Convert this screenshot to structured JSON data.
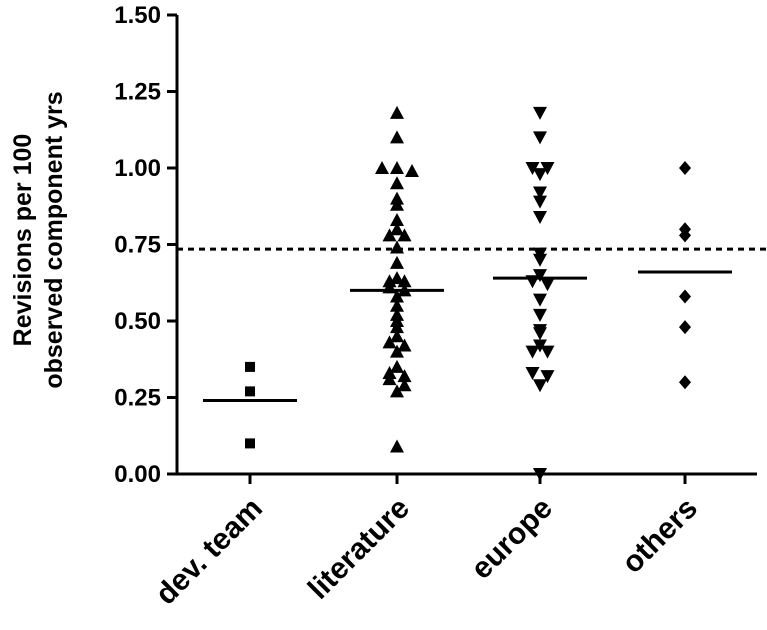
{
  "chart_data": {
    "type": "scatter",
    "title": "",
    "xlabel": "",
    "ylabel_lines": [
      "Revisions per 100",
      "observed component  yrs"
    ],
    "ylim": [
      0,
      1.5
    ],
    "yticks": [
      "0.00",
      "0.25",
      "0.50",
      "0.75",
      "1.00",
      "1.25",
      "1.50"
    ],
    "ytick_values": [
      0,
      0.25,
      0.5,
      0.75,
      1.0,
      1.25,
      1.5
    ],
    "reference_line": 0.735,
    "categories": [
      "dev. team",
      "literature",
      "europe",
      "others"
    ],
    "series": [
      {
        "category": "dev. team",
        "marker": "square",
        "mean": 0.24,
        "points": [
          0.35,
          0.27,
          0.1
        ]
      },
      {
        "category": "literature",
        "marker": "triangle-up",
        "mean": 0.6,
        "points": [
          1.18,
          1.1,
          1.0,
          1.0,
          0.99,
          0.95,
          0.9,
          0.88,
          0.83,
          0.8,
          0.78,
          0.78,
          0.74,
          0.69,
          0.64,
          0.63,
          0.63,
          0.61,
          0.6,
          0.58,
          0.55,
          0.52,
          0.5,
          0.48,
          0.45,
          0.43,
          0.42,
          0.4,
          0.35,
          0.33,
          0.32,
          0.31,
          0.29,
          0.27,
          0.09
        ]
      },
      {
        "category": "europe",
        "marker": "triangle-down",
        "mean": 0.64,
        "points": [
          1.18,
          1.1,
          1.0,
          1.0,
          0.98,
          0.92,
          0.89,
          0.84,
          0.72,
          0.7,
          0.65,
          0.63,
          0.62,
          0.57,
          0.52,
          0.47,
          0.46,
          0.42,
          0.4,
          0.4,
          0.33,
          0.32,
          0.29,
          0.0
        ]
      },
      {
        "category": "others",
        "marker": "diamond",
        "mean": 0.66,
        "points": [
          1.0,
          0.8,
          0.78,
          0.58,
          0.48,
          0.3
        ]
      }
    ]
  }
}
